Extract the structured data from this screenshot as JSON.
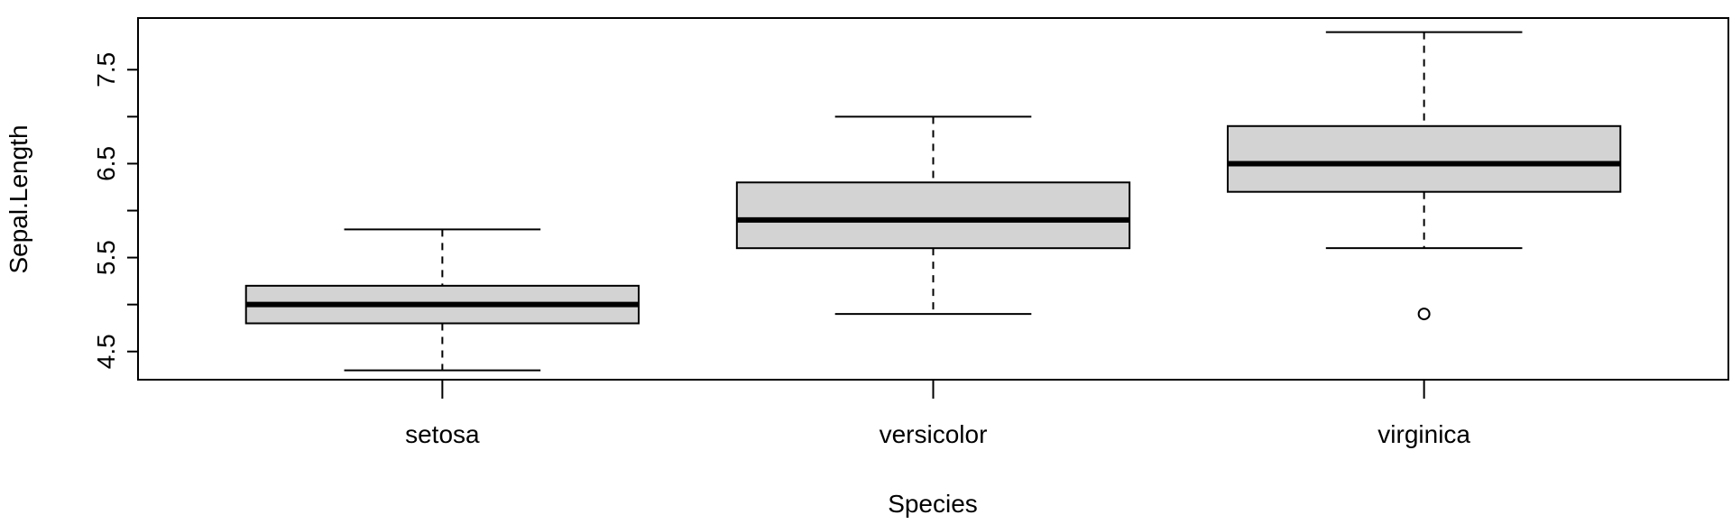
{
  "chart_data": {
    "type": "box",
    "title": "",
    "xlabel": "Species",
    "ylabel": "Sepal.Length",
    "ylim": [
      4.2,
      8.05
    ],
    "yticks": [
      4.5,
      5.5,
      6.5,
      7.5
    ],
    "ytick_labels": [
      "4.5",
      "5.5",
      "6.5",
      "7.5"
    ],
    "grid": false,
    "legend": "none",
    "box_fill": "#d3d3d3",
    "line_color": "#000000",
    "categories": [
      "setosa",
      "versicolor",
      "virginica"
    ],
    "boxes": [
      {
        "category": "setosa",
        "min": 4.3,
        "q1": 4.8,
        "median": 5.0,
        "q3": 5.2,
        "max": 5.8,
        "outliers": []
      },
      {
        "category": "versicolor",
        "min": 4.9,
        "q1": 5.6,
        "median": 5.9,
        "q3": 6.3,
        "max": 7.0,
        "outliers": []
      },
      {
        "category": "virginica",
        "min": 5.6,
        "q1": 6.2,
        "median": 6.5,
        "q3": 6.9,
        "max": 7.9,
        "outliers": [
          4.9
        ]
      }
    ]
  }
}
